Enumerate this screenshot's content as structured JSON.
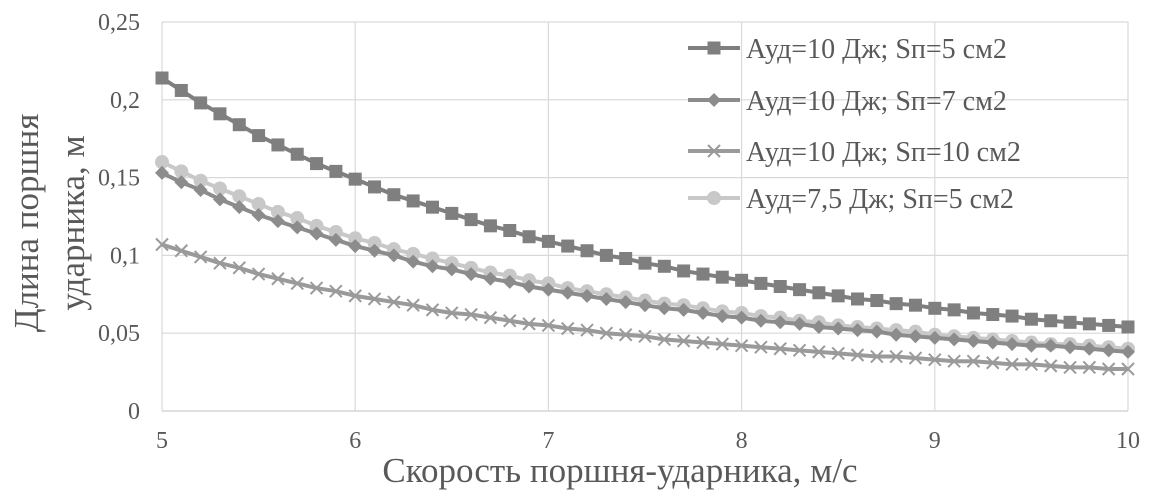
{
  "chart_data": {
    "type": "line",
    "title": "",
    "xlabel": "Скорость поршня-ударника, м/с",
    "ylabel_lines": [
      "Длина поршня",
      "ударника, м"
    ],
    "xlim": [
      5,
      10
    ],
    "ylim": [
      0,
      0.25
    ],
    "x_ticks": [
      5,
      6,
      7,
      8,
      9,
      10
    ],
    "x_tick_labels": [
      "5",
      "6",
      "7",
      "8",
      "9",
      "10"
    ],
    "y_ticks": [
      0,
      0.05,
      0.1,
      0.15,
      0.2,
      0.25
    ],
    "y_tick_labels": [
      "0",
      "0,05",
      "0,1",
      "0,15",
      "0,2",
      "0,25"
    ],
    "grid": true,
    "legend_position": "top-right",
    "x": [
      5.0,
      5.1,
      5.2,
      5.3,
      5.4,
      5.5,
      5.6,
      5.7,
      5.8,
      5.9,
      6.0,
      6.1,
      6.2,
      6.3,
      6.4,
      6.5,
      6.6,
      6.7,
      6.8,
      6.9,
      7.0,
      7.1,
      7.2,
      7.3,
      7.4,
      7.5,
      7.6,
      7.7,
      7.8,
      7.9,
      8.0,
      8.1,
      8.2,
      8.3,
      8.4,
      8.5,
      8.6,
      8.7,
      8.8,
      8.9,
      9.0,
      9.1,
      9.2,
      9.3,
      9.4,
      9.5,
      9.6,
      9.7,
      9.8,
      9.9,
      10.0
    ],
    "series": [
      {
        "name": "Ауд=10 Дж; Sп=5 см2",
        "color": "#7f7f7f",
        "marker": "square",
        "values": [
          0.214,
          0.206,
          0.198,
          0.191,
          0.184,
          0.177,
          0.171,
          0.165,
          0.159,
          0.154,
          0.149,
          0.144,
          0.139,
          0.135,
          0.131,
          0.127,
          0.123,
          0.119,
          0.116,
          0.112,
          0.109,
          0.106,
          0.103,
          0.1,
          0.098,
          0.095,
          0.093,
          0.09,
          0.088,
          0.086,
          0.084,
          0.082,
          0.08,
          0.078,
          0.076,
          0.074,
          0.072,
          0.071,
          0.069,
          0.068,
          0.066,
          0.065,
          0.063,
          0.062,
          0.061,
          0.059,
          0.058,
          0.057,
          0.056,
          0.055,
          0.054
        ]
      },
      {
        "name": "Ауд=10 Дж; Sп=7 см2",
        "color": "#8c8c8c",
        "marker": "diamond",
        "values": [
          0.153,
          0.147,
          0.142,
          0.136,
          0.131,
          0.126,
          0.122,
          0.118,
          0.114,
          0.11,
          0.106,
          0.103,
          0.1,
          0.096,
          0.093,
          0.091,
          0.088,
          0.085,
          0.083,
          0.08,
          0.078,
          0.076,
          0.074,
          0.072,
          0.07,
          0.068,
          0.066,
          0.065,
          0.063,
          0.061,
          0.06,
          0.058,
          0.057,
          0.056,
          0.054,
          0.053,
          0.052,
          0.051,
          0.049,
          0.048,
          0.047,
          0.046,
          0.045,
          0.044,
          0.043,
          0.042,
          0.042,
          0.041,
          0.04,
          0.039,
          0.038
        ]
      },
      {
        "name": "Ауд=10 Дж; Sп=10 см2",
        "color": "#9a9a9a",
        "marker": "x",
        "values": [
          0.107,
          0.103,
          0.099,
          0.095,
          0.092,
          0.088,
          0.085,
          0.082,
          0.079,
          0.077,
          0.074,
          0.072,
          0.07,
          0.068,
          0.065,
          0.063,
          0.062,
          0.06,
          0.058,
          0.056,
          0.055,
          0.053,
          0.052,
          0.05,
          0.049,
          0.048,
          0.046,
          0.045,
          0.044,
          0.043,
          0.042,
          0.041,
          0.04,
          0.039,
          0.038,
          0.037,
          0.036,
          0.035,
          0.035,
          0.034,
          0.033,
          0.032,
          0.032,
          0.031,
          0.03,
          0.03,
          0.029,
          0.028,
          0.028,
          0.027,
          0.027
        ]
      },
      {
        "name": "Ауд=7,5 Дж; Sп=5 см2",
        "color": "#c8c8c8",
        "marker": "circle",
        "values": [
          0.16,
          0.154,
          0.148,
          0.143,
          0.138,
          0.133,
          0.128,
          0.124,
          0.119,
          0.115,
          0.111,
          0.108,
          0.104,
          0.101,
          0.098,
          0.095,
          0.092,
          0.089,
          0.087,
          0.084,
          0.082,
          0.079,
          0.077,
          0.075,
          0.073,
          0.071,
          0.069,
          0.068,
          0.066,
          0.064,
          0.063,
          0.061,
          0.06,
          0.058,
          0.057,
          0.055,
          0.054,
          0.053,
          0.052,
          0.051,
          0.049,
          0.048,
          0.047,
          0.046,
          0.045,
          0.044,
          0.043,
          0.043,
          0.042,
          0.041,
          0.04
        ]
      }
    ]
  }
}
